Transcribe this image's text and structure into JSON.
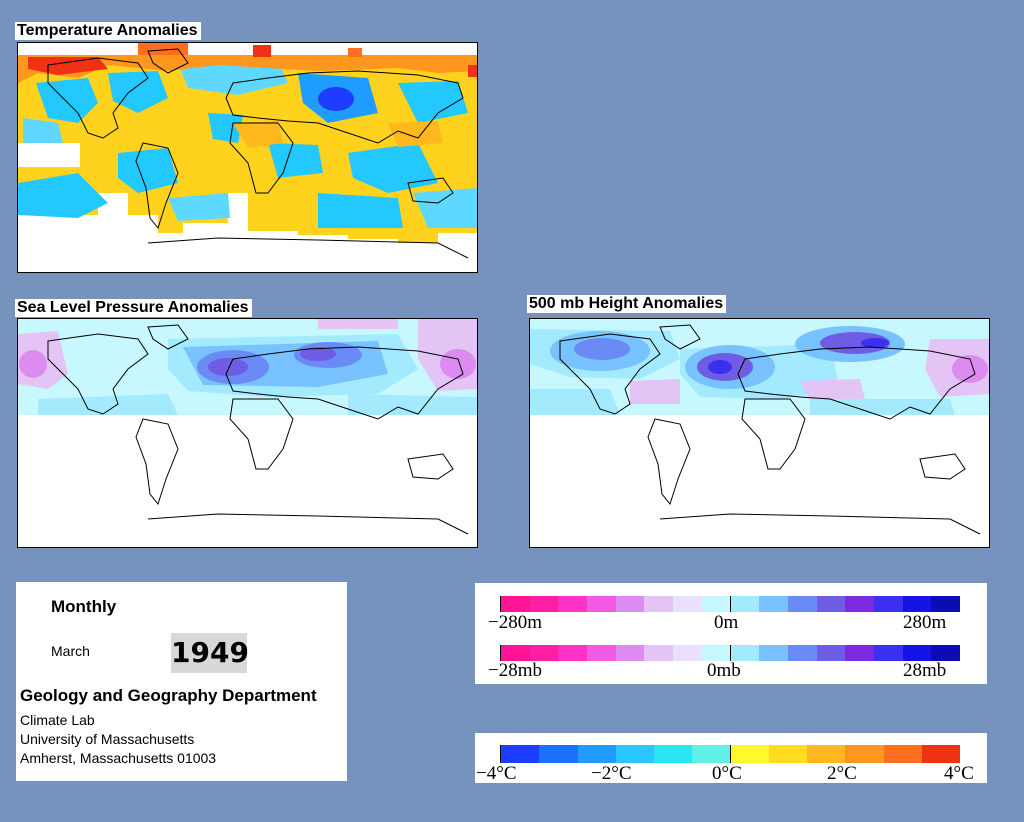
{
  "maps": {
    "temperature": {
      "title": "Temperature Anomalies"
    },
    "slp": {
      "title": "Sea Level Pressure Anomalies"
    },
    "height500": {
      "title": "500 mb Height Anomalies"
    }
  },
  "info": {
    "period": "Monthly",
    "month": "March",
    "year": "1949",
    "department": "Geology and Geography Department",
    "lab": "Climate Lab",
    "university": "University of Massachusetts",
    "address": "Amherst, Massachusetts 01003"
  },
  "legends": {
    "height": {
      "min": "−280m",
      "mid": "0m",
      "max": "280m"
    },
    "pressure": {
      "min": "−28mb",
      "mid": "0mb",
      "max": "28mb"
    },
    "temperature": {
      "labels": [
        "−4°C",
        "−2°C",
        "0°C",
        "2°C",
        "4°C"
      ]
    },
    "purple_scale": [
      "#ff1493",
      "#ff1fa0",
      "#ff33c8",
      "#f25ae6",
      "#dc8cf0",
      "#e3c4f5",
      "#eae0ff",
      "#c8f8ff",
      "#a3eaff",
      "#77c2ff",
      "#6a8bf5",
      "#6f5ce4",
      "#7b2ae0",
      "#3b2ff0",
      "#1414e6",
      "#0c0cb4"
    ],
    "temp_colors": [
      "#1e3cff",
      "#1e6eff",
      "#1e9cff",
      "#28c8ff",
      "#2ae6f0",
      "#5ff0e6",
      "#fff82a",
      "#ffdc1e",
      "#ffb91e",
      "#ff961e",
      "#ff6e1e",
      "#f03214"
    ]
  }
}
